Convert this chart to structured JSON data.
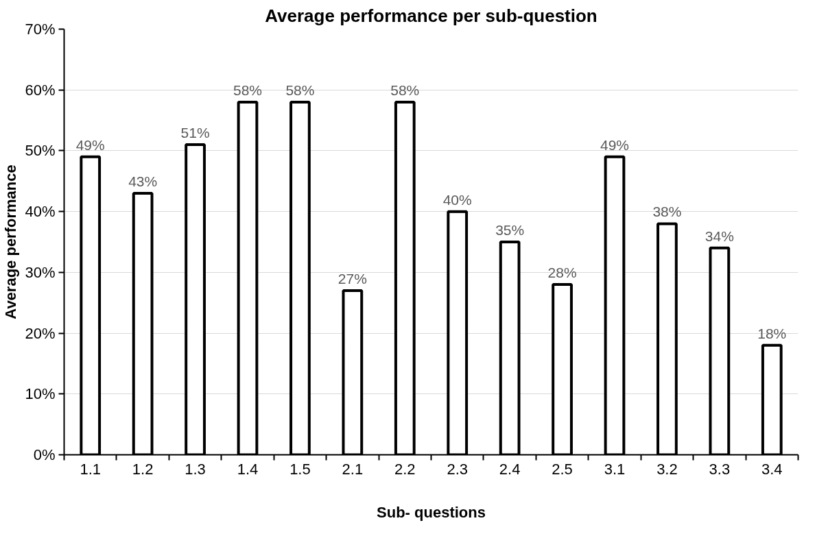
{
  "chart_data": {
    "type": "bar",
    "title": "Average performance per sub-question",
    "xlabel": "Sub- questions",
    "ylabel": "Average performance",
    "categories": [
      "1.1",
      "1.2",
      "1.3",
      "1.4",
      "1.5",
      "2.1",
      "2.2",
      "2.3",
      "2.4",
      "2.5",
      "3.1",
      "3.2",
      "3.3",
      "3.4"
    ],
    "values": [
      49,
      43,
      51,
      58,
      58,
      27,
      58,
      40,
      35,
      28,
      49,
      38,
      34,
      18
    ],
    "value_labels": [
      "49%",
      "43%",
      "51%",
      "58%",
      "58%",
      "27%",
      "58%",
      "40%",
      "35%",
      "28%",
      "49%",
      "38%",
      "34%",
      "18%"
    ],
    "color": "#ffffff",
    "ylim": [
      0,
      70
    ],
    "yticks": [
      {
        "value": 0,
        "label": "0%"
      },
      {
        "value": 10,
        "label": "10%"
      },
      {
        "value": 20,
        "label": "20%"
      },
      {
        "value": 30,
        "label": "30%"
      },
      {
        "value": 40,
        "label": "40%"
      },
      {
        "value": 50,
        "label": "50%"
      },
      {
        "value": 60,
        "label": "60%"
      },
      {
        "value": 70,
        "label": "70%"
      }
    ],
    "grid": "y"
  }
}
